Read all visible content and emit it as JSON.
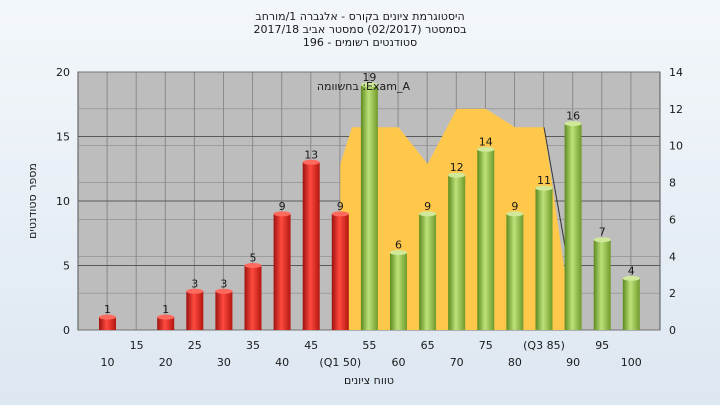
{
  "chart_data": {
    "type": "bar",
    "title_lines": [
      "היסטוגרמת ציונים בקורס - אלגברה 1/מורחב",
      "בסמסטר (02/2017) סמסטר אביב 2017/18",
      "סטודנטים רשומים - 196"
    ],
    "ylabel": "מספר סטודנטים",
    "xlabel": "טווח ציונים",
    "ylim": [
      0,
      20
    ],
    "yticks": [
      0,
      5,
      10,
      15,
      20
    ],
    "y2lim": [
      0,
      14
    ],
    "y2ticks": [
      0,
      2,
      4,
      6,
      8,
      10,
      12,
      14
    ],
    "categories": [
      10,
      20,
      25,
      30,
      35,
      40,
      45,
      50,
      55,
      60,
      65,
      70,
      75,
      80,
      85,
      90,
      95,
      100
    ],
    "values": [
      1,
      1,
      3,
      3,
      5,
      9,
      13,
      9,
      19,
      6,
      9,
      12,
      14,
      9,
      11,
      16,
      7,
      4
    ],
    "bar_colors": [
      "red",
      "red",
      "red",
      "red",
      "red",
      "red",
      "red",
      "red",
      "green",
      "green",
      "green",
      "green",
      "green",
      "green",
      "green",
      "green",
      "green",
      "green"
    ],
    "xticks_top": [
      "15",
      "25",
      "35",
      "45",
      "55",
      "65",
      "75",
      "(Q3 85)",
      "95"
    ],
    "xticks_bottom": [
      "10",
      "20",
      "30",
      "40",
      "(Q1 50)",
      "60",
      "70",
      "80",
      "90",
      "100"
    ],
    "area_series": {
      "name": "בחשוומה :Exam_A",
      "points": [
        [
          50,
          9
        ],
        [
          52,
          11
        ],
        [
          60,
          11
        ],
        [
          65,
          9
        ],
        [
          70,
          12
        ],
        [
          75,
          12
        ],
        [
          80,
          11
        ],
        [
          85,
          11
        ],
        [
          90,
          0
        ]
      ]
    },
    "legend_text": "בחשוומה :Exam_A",
    "colors": {
      "red_bar": "#e0241f",
      "green_bar": "#8fb840",
      "area": "#ffc84a",
      "plot_bg": "#bdbdbd"
    },
    "grid": true
  }
}
